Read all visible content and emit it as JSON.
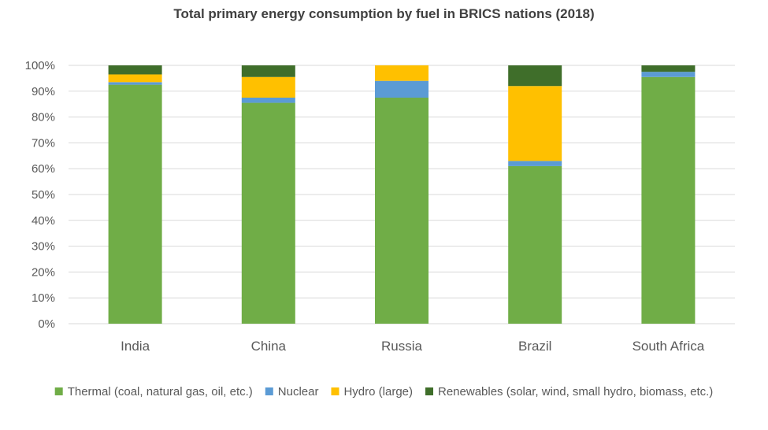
{
  "chart_data": {
    "type": "bar",
    "stacked": true,
    "title": "Total primary energy consumption by fuel in BRICS nations (2018)",
    "xlabel": "",
    "ylabel": "",
    "ylim": [
      0,
      100
    ],
    "y_ticks": [
      "0%",
      "10%",
      "20%",
      "30%",
      "40%",
      "50%",
      "60%",
      "70%",
      "80%",
      "90%",
      "100%"
    ],
    "y_tick_values": [
      0,
      10,
      20,
      30,
      40,
      50,
      60,
      70,
      80,
      90,
      100
    ],
    "grid": true,
    "legend_position": "bottom",
    "categories": [
      "India",
      "China",
      "Russia",
      "Brazil",
      "South Africa"
    ],
    "series": [
      {
        "name": "Thermal (coal, natural gas, oil, etc.)",
        "color": "#70AD47",
        "values": [
          92.5,
          85.5,
          87.5,
          61.0,
          95.5
        ]
      },
      {
        "name": "Nuclear",
        "color": "#5B9BD5",
        "values": [
          1.0,
          2.0,
          6.5,
          2.0,
          2.0
        ]
      },
      {
        "name": "Hydro (large)",
        "color": "#FFC000",
        "values": [
          3.0,
          8.0,
          6.0,
          29.0,
          0.0
        ]
      },
      {
        "name": "Renewables (solar, wind, small hydro, biomass, etc.)",
        "color": "#3F6E2A",
        "values": [
          3.5,
          4.5,
          0.0,
          8.0,
          2.5
        ]
      }
    ]
  }
}
